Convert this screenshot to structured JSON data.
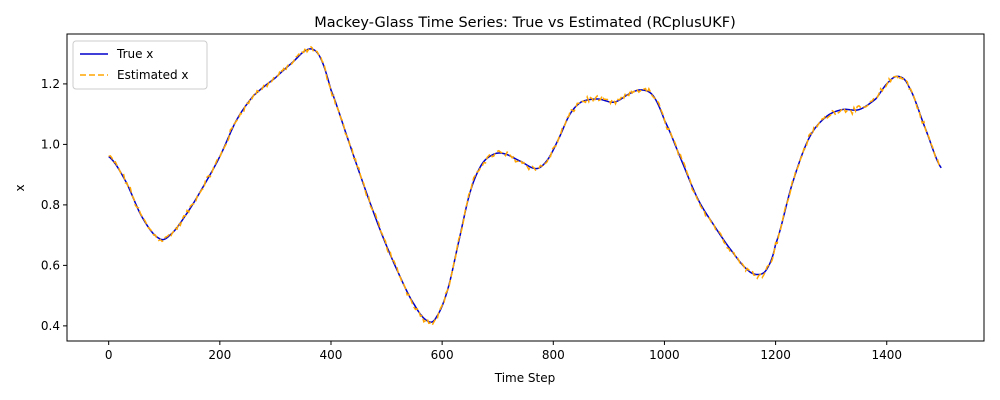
{
  "chart_data": {
    "type": "line",
    "title": "Mackey-Glass Time Series: True vs Estimated (RCplusUKF)",
    "xlabel": "Time Step",
    "ylabel": "x",
    "xlim": [
      -75,
      1575
    ],
    "ylim": [
      0.35,
      1.365
    ],
    "x_ticks": [
      0,
      200,
      400,
      600,
      800,
      1000,
      1200,
      1400
    ],
    "y_ticks": [
      0.4,
      0.6,
      0.8,
      1.0,
      1.2
    ],
    "x_tick_labels": [
      "0",
      "200",
      "400",
      "600",
      "800",
      "1000",
      "1200",
      "1400"
    ],
    "y_tick_labels": [
      "0.4",
      "0.6",
      "0.8",
      "1.0",
      "1.2"
    ],
    "grid": false,
    "legend_position": "top-left",
    "x_range": [
      0,
      1499
    ],
    "series": [
      {
        "name": "True x",
        "color": "#0000cc",
        "style": "solid",
        "keypoints": [
          [
            0,
            0.96
          ],
          [
            30,
            0.88
          ],
          [
            60,
            0.76
          ],
          [
            90,
            0.69
          ],
          [
            110,
            0.7
          ],
          [
            140,
            0.77
          ],
          [
            170,
            0.86
          ],
          [
            200,
            0.96
          ],
          [
            230,
            1.08
          ],
          [
            260,
            1.16
          ],
          [
            300,
            1.22
          ],
          [
            330,
            1.27
          ],
          [
            360,
            1.315
          ],
          [
            380,
            1.29
          ],
          [
            400,
            1.18
          ],
          [
            430,
            1.02
          ],
          [
            460,
            0.86
          ],
          [
            490,
            0.71
          ],
          [
            520,
            0.58
          ],
          [
            550,
            0.47
          ],
          [
            575,
            0.415
          ],
          [
            590,
            0.43
          ],
          [
            610,
            0.52
          ],
          [
            630,
            0.68
          ],
          [
            650,
            0.84
          ],
          [
            670,
            0.93
          ],
          [
            690,
            0.965
          ],
          [
            710,
            0.97
          ],
          [
            740,
            0.945
          ],
          [
            770,
            0.92
          ],
          [
            790,
            0.95
          ],
          [
            810,
            1.02
          ],
          [
            830,
            1.1
          ],
          [
            850,
            1.14
          ],
          [
            880,
            1.15
          ],
          [
            910,
            1.14
          ],
          [
            940,
            1.17
          ],
          [
            960,
            1.18
          ],
          [
            980,
            1.16
          ],
          [
            1000,
            1.08
          ],
          [
            1030,
            0.95
          ],
          [
            1060,
            0.82
          ],
          [
            1090,
            0.73
          ],
          [
            1120,
            0.65
          ],
          [
            1150,
            0.585
          ],
          [
            1170,
            0.57
          ],
          [
            1185,
            0.59
          ],
          [
            1200,
            0.67
          ],
          [
            1230,
            0.87
          ],
          [
            1260,
            1.02
          ],
          [
            1290,
            1.09
          ],
          [
            1320,
            1.115
          ],
          [
            1350,
            1.115
          ],
          [
            1380,
            1.15
          ],
          [
            1400,
            1.2
          ],
          [
            1420,
            1.225
          ],
          [
            1440,
            1.19
          ],
          [
            1470,
            1.05
          ],
          [
            1499,
            0.92
          ]
        ]
      },
      {
        "name": "Estimated x",
        "color": "#ffa500",
        "style": "dashed",
        "noise": 0.009
      }
    ]
  }
}
